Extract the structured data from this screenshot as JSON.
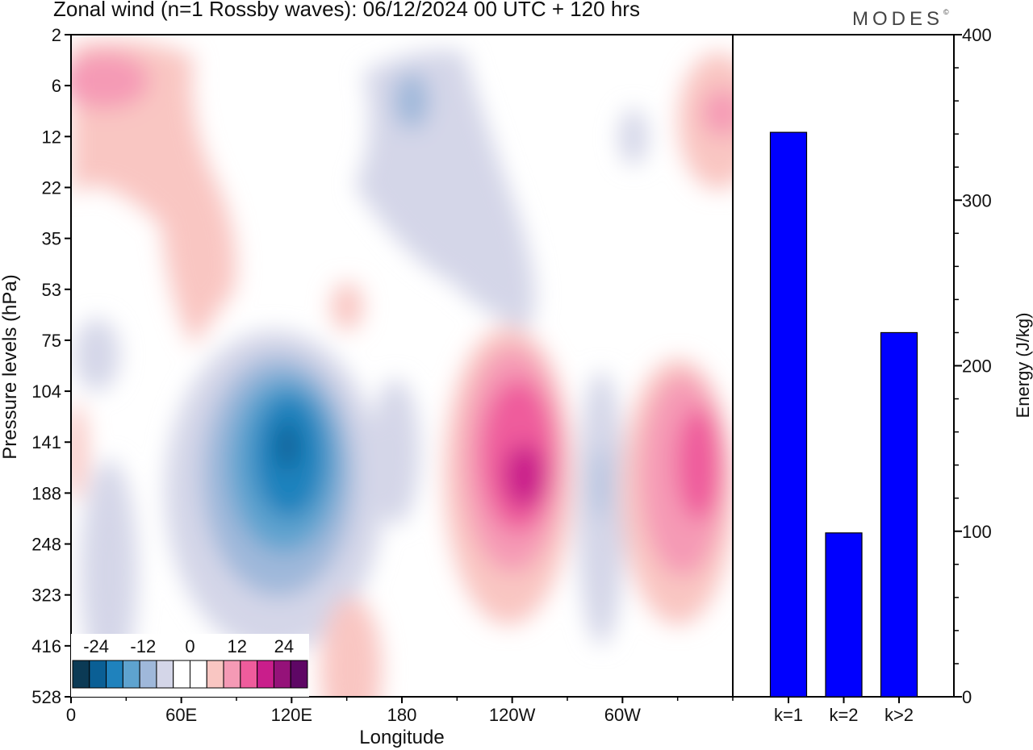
{
  "title": "Zonal wind (n=1 Rossby waves):  06/12/2024  00 UTC  + 120 hrs",
  "logo": "MODES",
  "logo_mark": "©",
  "colors": {
    "neg_levels": [
      "#0b3a55",
      "#0a5f95",
      "#1f82bd",
      "#5ea3cf",
      "#9fb8da",
      "#d4d6e8"
    ],
    "pos_levels": [
      "#f9c6c2",
      "#f59ab5",
      "#ef5c9c",
      "#c91e8b",
      "#951279",
      "#5e0765"
    ],
    "bar": "#0000ff"
  },
  "chart_data": [
    {
      "type": "heatmap",
      "field": "Zonal wind (n=1 Rossby waves)",
      "xlabel": "Longitude",
      "ylabel": "Pressure levels (hPa)",
      "x_ticks": [
        "0",
        "60E",
        "120E",
        "180",
        "120W",
        "60W"
      ],
      "x_tick_degrees": [
        0,
        60,
        120,
        180,
        240,
        300
      ],
      "xlim": [
        0,
        360
      ],
      "y_ticks": [
        "2",
        "6",
        "12",
        "22",
        "35",
        "53",
        "75",
        "104",
        "141",
        "188",
        "248",
        "323",
        "416",
        "528"
      ],
      "colorbar_labels": [
        "-24",
        "-12",
        "0",
        "12",
        "24"
      ],
      "colorbar_values": [
        -24,
        -12,
        0,
        12,
        24
      ],
      "colorbar_range": [
        -30,
        30
      ],
      "features": [
        {
          "sign": -1,
          "lon": 120,
          "level": 141,
          "peak": -22
        },
        {
          "sign": 1,
          "lon": 245,
          "level": 160,
          "peak": 20
        },
        {
          "sign": 1,
          "lon": 340,
          "level": 160,
          "peak": 14
        },
        {
          "sign": -1,
          "lon": 185,
          "level": 10,
          "peak": -8
        },
        {
          "sign": 1,
          "lon": 15,
          "level": 6,
          "peak": 8
        }
      ]
    },
    {
      "type": "bar",
      "categories": [
        "k=1",
        "k=2",
        "k>2"
      ],
      "values": [
        341,
        99,
        220
      ],
      "ylabel": "Energy (J/kg)",
      "ylim": [
        0,
        400
      ],
      "y_ticks": [
        0,
        100,
        200,
        300,
        400
      ]
    }
  ]
}
